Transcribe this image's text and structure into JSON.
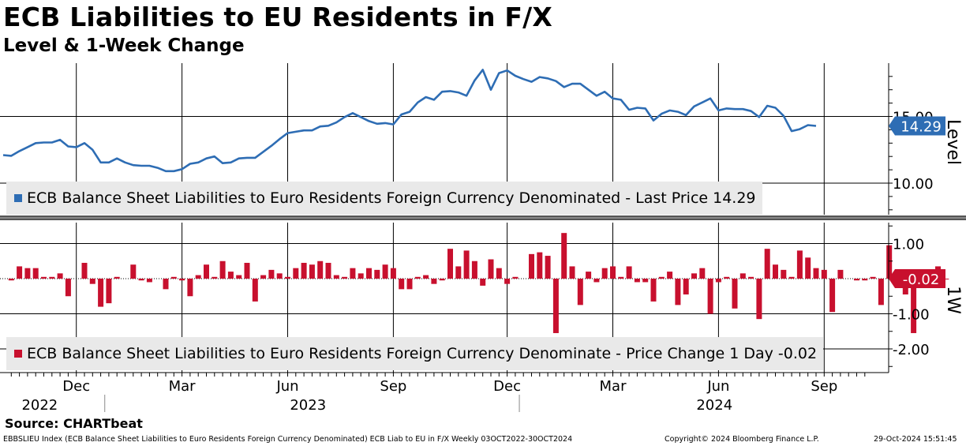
{
  "header": {
    "title": "ECB Liabilities to EU Residents in F/X",
    "subtitle": "Level & 1-Week Change"
  },
  "legend": {
    "top": "ECB Balance Sheet Liabilities to Euro Residents Foreign Currency Denominated - Last Price 14.29",
    "bottom": "ECB Balance Sheet Liabilities to Euro Residents Foreign Currency Denominate - Price Change 1 Day -0.02"
  },
  "source": "Source: CHARTbeat",
  "footer": {
    "left": "EBBSLIEU Index (ECB Balance Sheet Liabilities to Euro Residents Foreign Currency Denominated) ECB Liab to EU in F/X  Weekly 03OCT2022-30OCT2024",
    "mid": "Copyright© 2024 Bloomberg Finance L.P.",
    "right": "29-Oct-2024 15:51:45"
  },
  "colors": {
    "level_line": "#2e6db4",
    "change_bar": "#c8102e",
    "legend_bg": "#e9e9e9"
  },
  "chart_data": [
    {
      "type": "line",
      "title": "Level",
      "ylabel": "Level",
      "ylim": [
        7.5,
        18.5
      ],
      "yticks": [
        10.0,
        15.0
      ],
      "ytick_labels": [
        "10.00",
        "15.00"
      ],
      "last_value_label": "14.29",
      "x_start_week": 0,
      "values": [
        12.1,
        12.05,
        12.4,
        12.7,
        13.0,
        13.05,
        13.05,
        13.25,
        12.75,
        12.7,
        13.0,
        12.5,
        11.55,
        11.55,
        11.85,
        11.55,
        11.35,
        11.3,
        11.3,
        11.15,
        10.9,
        10.9,
        11.05,
        11.45,
        11.55,
        11.85,
        12.0,
        11.5,
        11.55,
        11.85,
        11.9,
        11.9,
        12.35,
        12.8,
        13.3,
        13.75,
        13.85,
        13.95,
        13.95,
        14.25,
        14.3,
        14.55,
        14.95,
        15.25,
        14.95,
        14.65,
        14.45,
        14.5,
        14.4,
        15.15,
        15.35,
        16.05,
        16.45,
        16.25,
        16.85,
        16.9,
        16.8,
        16.55,
        17.7,
        18.5,
        17.0,
        18.25,
        18.45,
        18.05,
        17.8,
        17.6,
        17.95,
        17.85,
        17.65,
        17.2,
        17.45,
        17.45,
        17.0,
        16.55,
        16.85,
        16.35,
        16.25,
        15.5,
        15.65,
        15.6,
        14.7,
        15.2,
        15.45,
        15.35,
        15.1,
        15.75,
        16.05,
        16.35,
        15.45,
        15.6,
        15.55,
        15.55,
        15.4,
        14.95,
        15.8,
        15.65,
        15.05,
        13.9,
        14.05,
        14.35,
        14.29
      ],
      "x_tick_labels": [
        {
          "week": 9,
          "label": "Dec"
        },
        {
          "week": 22,
          "label": "Mar"
        },
        {
          "week": 35,
          "label": "Jun"
        },
        {
          "week": 48,
          "label": "Sep"
        },
        {
          "week": 62,
          "label": "Dec"
        },
        {
          "week": 75,
          "label": "Mar"
        },
        {
          "week": 88,
          "label": "Jun"
        },
        {
          "week": 101,
          "label": "Sep"
        }
      ],
      "year_labels": [
        {
          "week": 4.5,
          "label": "2022"
        },
        {
          "week": 37.5,
          "label": "2023"
        },
        {
          "week": 87.5,
          "label": "2024"
        }
      ],
      "year_separators": [
        12.5,
        63.5
      ]
    },
    {
      "type": "bar",
      "title": "1-Week Change",
      "ylabel": "1W",
      "ylim": [
        -2.7,
        1.6
      ],
      "yticks": [
        -2.0,
        -1.0,
        1.0
      ],
      "ytick_labels": [
        "-2.00",
        "-1.00",
        "1.00"
      ],
      "last_value_label": "-0.02",
      "x_start_week": 1,
      "values": [
        -0.05,
        0.35,
        0.3,
        0.3,
        0.05,
        0.05,
        0.15,
        -0.5,
        0.0,
        0.45,
        -0.15,
        -0.8,
        -0.7,
        0.05,
        0.0,
        0.4,
        -0.05,
        -0.1,
        0.0,
        -0.3,
        0.05,
        -0.05,
        -0.5,
        0.1,
        0.4,
        0.05,
        0.5,
        0.2,
        0.1,
        0.45,
        -0.65,
        0.1,
        0.25,
        0.15,
        0.05,
        0.3,
        0.45,
        0.4,
        0.5,
        0.45,
        0.1,
        0.05,
        0.3,
        0.15,
        0.3,
        0.25,
        0.4,
        0.3,
        -0.3,
        -0.3,
        0.05,
        0.1,
        -0.15,
        -0.05,
        0.85,
        0.35,
        0.8,
        0.5,
        -0.2,
        0.55,
        0.3,
        -0.15,
        0.05,
        0.0,
        0.7,
        0.75,
        0.65,
        -1.55,
        1.3,
        0.35,
        -0.75,
        0.2,
        -0.1,
        0.3,
        0.35,
        0.05,
        0.35,
        -0.1,
        -0.1,
        -0.65,
        0.05,
        0.2,
        -0.75,
        -0.45,
        0.15,
        0.3,
        -1.0,
        -0.1,
        0.05,
        -0.85,
        0.15,
        0.05,
        -1.15,
        0.85,
        0.4,
        0.25,
        0.05,
        0.8,
        0.6,
        0.3,
        0.25,
        -0.95,
        0.25,
        0.0,
        -0.05,
        -0.05,
        0.05,
        -0.75,
        0.95,
        -0.1,
        -0.45,
        -1.55,
        0.2,
        0.2,
        0.35,
        -0.02
      ],
      "x_tick_labels": [
        {
          "week": 9,
          "label": "Dec"
        },
        {
          "week": 22,
          "label": "Mar"
        },
        {
          "week": 35,
          "label": "Jun"
        },
        {
          "week": 48,
          "label": "Sep"
        },
        {
          "week": 62,
          "label": "Dec"
        },
        {
          "week": 75,
          "label": "Mar"
        },
        {
          "week": 88,
          "label": "Jun"
        },
        {
          "week": 101,
          "label": "Sep"
        }
      ]
    }
  ]
}
